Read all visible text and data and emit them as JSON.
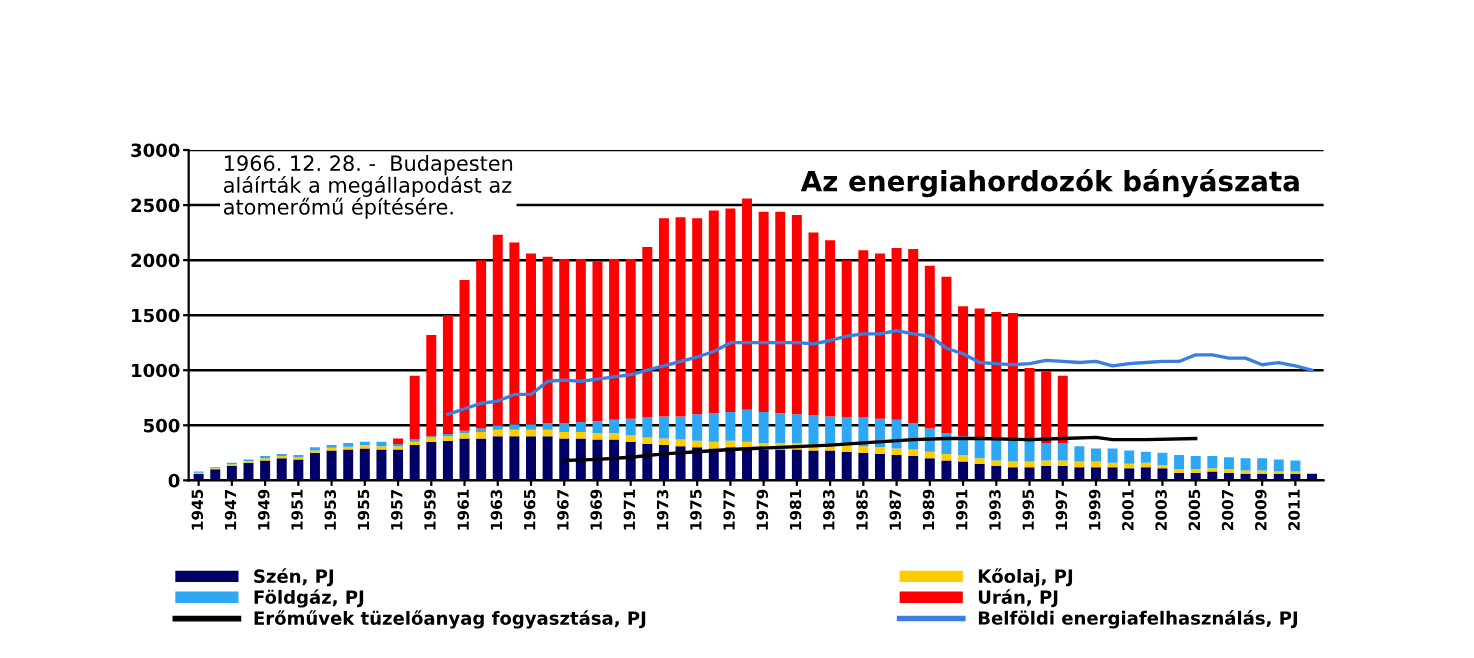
{
  "chart_data": {
    "type": "bar",
    "stacked": true,
    "title": "Az energiahordozók bányászata",
    "annotations": [
      "1966. 12. 28. -  Budapesten\naláírták a megállapodást az\natomerőmű építésére."
    ],
    "x": [
      1945,
      1946,
      1947,
      1948,
      1949,
      1950,
      1951,
      1952,
      1953,
      1954,
      1955,
      1956,
      1957,
      1958,
      1959,
      1960,
      1961,
      1962,
      1963,
      1964,
      1965,
      1966,
      1967,
      1968,
      1969,
      1970,
      1971,
      1972,
      1973,
      1974,
      1975,
      1976,
      1977,
      1978,
      1979,
      1980,
      1981,
      1982,
      1983,
      1984,
      1985,
      1986,
      1987,
      1988,
      1989,
      1990,
      1991,
      1992,
      1993,
      1994,
      1995,
      1996,
      1997,
      1998,
      1999,
      2000,
      2001,
      2002,
      2003,
      2004,
      2005,
      2006,
      2007,
      2008,
      2009,
      2010,
      2011,
      2012
    ],
    "xlim": [
      1944.4,
      2012.7
    ],
    "xticks": [
      1945,
      1947,
      1949,
      1951,
      1953,
      1955,
      1957,
      1959,
      1961,
      1963,
      1965,
      1967,
      1969,
      1971,
      1973,
      1975,
      1977,
      1979,
      1981,
      1983,
      1985,
      1987,
      1989,
      1991,
      1993,
      1995,
      1997,
      1999,
      2001,
      2003,
      2005,
      2007,
      2009,
      2011
    ],
    "ylim": [
      0,
      3000
    ],
    "yticks": [
      0,
      500,
      1000,
      1500,
      2000,
      2500,
      3000
    ],
    "grid": "y",
    "legend": "bottom",
    "series": [
      {
        "name": "Szén, PJ",
        "color": "#000066",
        "values": [
          60,
          100,
          130,
          160,
          180,
          200,
          190,
          250,
          270,
          280,
          290,
          280,
          280,
          320,
          350,
          360,
          380,
          380,
          400,
          400,
          400,
          400,
          380,
          380,
          370,
          370,
          350,
          330,
          320,
          310,
          300,
          290,
          300,
          290,
          280,
          280,
          280,
          270,
          270,
          260,
          250,
          240,
          230,
          220,
          200,
          180,
          170,
          150,
          130,
          120,
          120,
          130,
          130,
          120,
          120,
          120,
          110,
          120,
          110,
          70,
          70,
          80,
          70,
          60,
          60,
          60,
          60,
          60
        ]
      },
      {
        "name": "Kőolaj, PJ",
        "color": "#ffcc00",
        "values": [
          10,
          10,
          15,
          15,
          20,
          20,
          20,
          20,
          25,
          25,
          30,
          30,
          30,
          30,
          40,
          40,
          50,
          60,
          60,
          60,
          60,
          60,
          60,
          60,
          60,
          60,
          60,
          60,
          60,
          60,
          60,
          60,
          60,
          60,
          60,
          60,
          60,
          60,
          60,
          60,
          60,
          60,
          60,
          60,
          60,
          60,
          60,
          50,
          50,
          50,
          50,
          50,
          50,
          50,
          50,
          40,
          40,
          40,
          30,
          30,
          30,
          30,
          30,
          30,
          30,
          20,
          20,
          null
        ]
      },
      {
        "name": "Földgáz, PJ",
        "color": "#2ea8f5",
        "values": [
          10,
          10,
          15,
          15,
          20,
          20,
          20,
          30,
          25,
          35,
          30,
          40,
          20,
          20,
          10,
          20,
          20,
          30,
          40,
          50,
          50,
          60,
          80,
          90,
          110,
          120,
          150,
          180,
          200,
          210,
          240,
          260,
          260,
          290,
          280,
          270,
          260,
          260,
          250,
          250,
          260,
          260,
          260,
          240,
          210,
          190,
          170,
          190,
          200,
          190,
          180,
          160,
          160,
          140,
          120,
          130,
          120,
          100,
          110,
          130,
          120,
          110,
          110,
          110,
          110,
          110,
          100,
          null
        ]
      },
      {
        "name": "Urán, PJ",
        "color": "#ff0000",
        "values": [
          null,
          null,
          null,
          null,
          null,
          null,
          null,
          null,
          null,
          null,
          null,
          null,
          50,
          580,
          920,
          1080,
          1370,
          1530,
          1730,
          1650,
          1550,
          1510,
          1490,
          1480,
          1450,
          1460,
          1450,
          1550,
          1800,
          1810,
          1780,
          1840,
          1850,
          1920,
          1820,
          1830,
          1810,
          1660,
          1600,
          1430,
          1520,
          1500,
          1560,
          1580,
          1480,
          1420,
          1180,
          1170,
          1150,
          1160,
          670,
          650,
          610,
          null,
          null,
          null,
          null,
          null,
          null,
          null,
          null,
          null,
          null,
          null,
          null,
          null,
          null,
          null
        ]
      },
      {
        "name": "Erőművek tüzelőanyag fogyasztása, PJ",
        "type": "line",
        "color": "#000000",
        "x": [
          1967,
          1969,
          1971,
          1973,
          1975,
          1977,
          1980,
          1983,
          1985,
          1988,
          1990,
          1992,
          1995,
          1997,
          1999,
          2000,
          2002,
          2005
        ],
        "values": [
          180,
          190,
          210,
          240,
          260,
          280,
          300,
          320,
          340,
          370,
          380,
          380,
          370,
          380,
          390,
          370,
          370,
          380
        ]
      },
      {
        "name": "Belföldi energiafelhasználás, PJ",
        "type": "line",
        "color": "#3a7fe0",
        "x": [
          1960,
          1961,
          1962,
          1963,
          1964,
          1965,
          1966,
          1967,
          1968,
          1969,
          1970,
          1971,
          1972,
          1973,
          1974,
          1975,
          1976,
          1977,
          1978,
          1979,
          1980,
          1981,
          1982,
          1983,
          1984,
          1985,
          1986,
          1987,
          1988,
          1989,
          1990,
          1991,
          1992,
          1993,
          1994,
          1995,
          1996,
          1997,
          1998,
          1999,
          2000,
          2001,
          2002,
          2003,
          2004,
          2005,
          2006,
          2007,
          2008,
          2009,
          2010,
          2011,
          2012
        ],
        "values": [
          600,
          650,
          700,
          720,
          780,
          780,
          900,
          910,
          900,
          920,
          940,
          960,
          1000,
          1040,
          1080,
          1120,
          1170,
          1250,
          1250,
          1250,
          1250,
          1250,
          1240,
          1270,
          1310,
          1330,
          1330,
          1360,
          1330,
          1310,
          1200,
          1150,
          1070,
          1060,
          1050,
          1060,
          1090,
          1080,
          1070,
          1080,
          1040,
          1060,
          1070,
          1080,
          1080,
          1140,
          1140,
          1110,
          1110,
          1050,
          1070,
          1040,
          1000
        ]
      }
    ]
  }
}
